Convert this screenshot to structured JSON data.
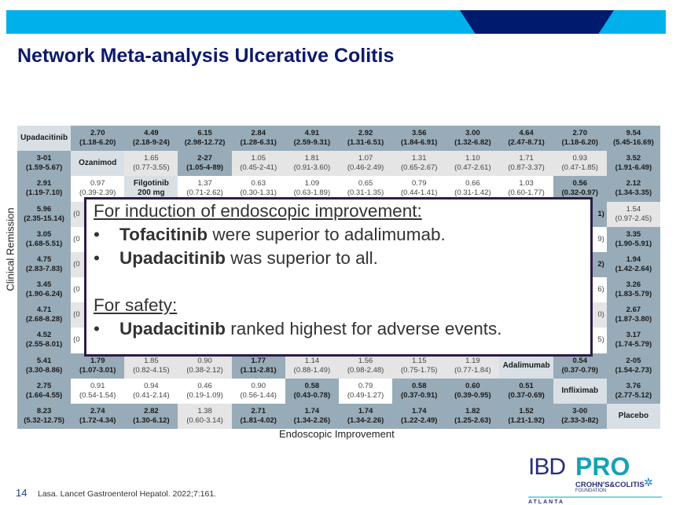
{
  "slide": {
    "title": "Network Meta-analysis Ulcerative Colitis",
    "y_axis_label": "Clinical Remission",
    "x_axis_label": "Endoscopic Improvement",
    "page_number": "14",
    "citation": "Lasa. Lancet Gastroenterol Hepatol. 2022;7:161.",
    "colors": {
      "banner": "#00b0ea",
      "banner_notch": "#001b6e",
      "title": "#0d1a6b",
      "significant": "#97abb8",
      "label": "#d8e0e6",
      "callout_border": "#2e1a47"
    }
  },
  "logo": {
    "ibd": "IBD",
    "pro": "PRO",
    "org": "CROHN'S&COLITIS",
    "foundation": "FOUNDATION",
    "city": "ATLANTA"
  },
  "callout": {
    "heading1": "For induction of endoscopic improvement",
    "bullet1_bold": "Tofacitinib",
    "bullet1_text": " were superior to adalimumab.",
    "bullet2_bold": "Upadacitinib",
    "bullet2_text": " was superior to all.",
    "heading2": "For safety",
    "bullet3_bold": "Upadacitinib",
    "bullet3_text": " ranked highest for adverse events.",
    "colon": ":",
    "bullet": "•"
  },
  "table": {
    "rows": [
      [
        [
          "Upadacitinib",
          "",
          "l"
        ],
        [
          "2.70",
          "(1.18-6.20)",
          "b"
        ],
        [
          "4.49",
          "(2.18-9-24)",
          "b"
        ],
        [
          "6.15",
          "(2.98-12.72)",
          "b"
        ],
        [
          "2.84",
          "(1.28-6.31)",
          "b"
        ],
        [
          "4.91",
          "(2.59-9.31)",
          "b"
        ],
        [
          "2.92",
          "(1.31-6.51)",
          "b"
        ],
        [
          "3.56",
          "(1.84-6.91)",
          "b"
        ],
        [
          "3.00",
          "(1.32-6.82)",
          "b"
        ],
        [
          "4.64",
          "(2.47-8.71)",
          "b"
        ],
        [
          "2.70",
          "(1.18-6.20)",
          "b"
        ],
        [
          "9.54",
          "(5.45-16.69)",
          "b"
        ]
      ],
      [
        [
          "3-01",
          "(1.59-5.67)",
          "b"
        ],
        [
          "Ozanimod",
          "",
          "l"
        ],
        [
          "1.65",
          "(0.77-3.55)",
          "g"
        ],
        [
          "2-27",
          "(1.05-4-89)",
          "b"
        ],
        [
          "1.05",
          "(0.45-2-41)",
          "g"
        ],
        [
          "1.81",
          "(0.91-3.60)",
          "g"
        ],
        [
          "1.07",
          "(0.46-2.49)",
          "g"
        ],
        [
          "1.31",
          "(0.65-2.67)",
          "g"
        ],
        [
          "1.10",
          "(0.47-2.61)",
          "g"
        ],
        [
          "1.71",
          "(0.87-3.37)",
          "g"
        ],
        [
          "0.93",
          "(0.47-1.85)",
          "g"
        ],
        [
          "3.52",
          "(1.91-6.49)",
          "b"
        ]
      ],
      [
        [
          "2.91",
          "(1.19-7.10)",
          "b"
        ],
        [
          "0.97",
          "(0.39-2.39)",
          "w"
        ],
        [
          "Filgotinib",
          "200 mg",
          "l"
        ],
        [
          "1.37",
          "(0.71-2.62)",
          "w"
        ],
        [
          "0.63",
          "(0.30-1.31)",
          "w"
        ],
        [
          "1.09",
          "(0.63-1.89)",
          "w"
        ],
        [
          "0.65",
          "(0.31-1.35)",
          "w"
        ],
        [
          "0.79",
          "(0.44-1.41)",
          "w"
        ],
        [
          "0.66",
          "(0.31-1.42)",
          "w"
        ],
        [
          "1.03",
          "(0.60-1.77)",
          "w"
        ],
        [
          "0.56",
          "(0.32-0.97)",
          "b"
        ],
        [
          "2.12",
          "(1.34-3.35)",
          "b"
        ]
      ],
      [
        [
          "5.96",
          "(2.35-15.14)",
          "b"
        ],
        [
          "",
          "(0",
          "g fl"
        ],
        [
          "",
          "",
          "g"
        ],
        [
          "",
          "",
          "g"
        ],
        [
          "",
          "",
          "g"
        ],
        [
          "",
          "",
          "g"
        ],
        [
          "",
          "",
          "g"
        ],
        [
          "",
          "",
          "g"
        ],
        [
          "",
          "",
          "g"
        ],
        [
          "",
          "",
          "g"
        ],
        [
          "",
          "1)",
          "b fr"
        ],
        [
          "1.54",
          "(0.97-2.45)",
          "g"
        ]
      ],
      [
        [
          "3.05",
          "(1.68-5.51)",
          "b"
        ],
        [
          "",
          "(0",
          "w fl"
        ],
        [
          "",
          "",
          "w"
        ],
        [
          "",
          "",
          "w"
        ],
        [
          "",
          "",
          "w"
        ],
        [
          "",
          "",
          "w"
        ],
        [
          "",
          "",
          "w"
        ],
        [
          "",
          "",
          "w"
        ],
        [
          "",
          "",
          "w"
        ],
        [
          "",
          "",
          "w"
        ],
        [
          "",
          "9)",
          "w fr"
        ],
        [
          "3.35",
          "(1.90-5.91)",
          "b"
        ]
      ],
      [
        [
          "4.75",
          "(2.83-7.83)",
          "b"
        ],
        [
          "",
          "(0",
          "g fl"
        ],
        [
          "",
          "",
          "g"
        ],
        [
          "",
          "",
          "g"
        ],
        [
          "",
          "",
          "g"
        ],
        [
          "",
          "",
          "g"
        ],
        [
          "",
          "",
          "g"
        ],
        [
          "",
          "",
          "g"
        ],
        [
          "",
          "",
          "g"
        ],
        [
          "",
          "",
          "g"
        ],
        [
          "",
          "2)",
          "b fr"
        ],
        [
          "1.94",
          "(1.42-2.64)",
          "b"
        ]
      ],
      [
        [
          "3.45",
          "(1.90-6.24)",
          "b"
        ],
        [
          "",
          "(0",
          "w fl"
        ],
        [
          "",
          "",
          "w"
        ],
        [
          "",
          "",
          "w"
        ],
        [
          "",
          "",
          "w"
        ],
        [
          "",
          "",
          "w"
        ],
        [
          "",
          "",
          "w"
        ],
        [
          "",
          "",
          "w"
        ],
        [
          "",
          "",
          "w"
        ],
        [
          "",
          "",
          "w"
        ],
        [
          "",
          "6)",
          "w fr"
        ],
        [
          "3.26",
          "(1.83-5.79)",
          "b"
        ]
      ],
      [
        [
          "4.71",
          "(2.68-8.28)",
          "b"
        ],
        [
          "",
          "(0",
          "g fl"
        ],
        [
          "",
          "",
          "g"
        ],
        [
          "",
          "",
          "g"
        ],
        [
          "",
          "",
          "g"
        ],
        [
          "",
          "",
          "g"
        ],
        [
          "",
          "",
          "g"
        ],
        [
          "",
          "",
          "g"
        ],
        [
          "",
          "",
          "g"
        ],
        [
          "",
          "",
          "g"
        ],
        [
          "",
          "0)",
          "g fr"
        ],
        [
          "2.67",
          "(1.87-3.80)",
          "b"
        ]
      ],
      [
        [
          "4.52",
          "(2.55-8.01)",
          "b"
        ],
        [
          "",
          "(0",
          "w fl"
        ],
        [
          "",
          "",
          "w"
        ],
        [
          "",
          "",
          "w"
        ],
        [
          "",
          "",
          "w"
        ],
        [
          "",
          "",
          "w"
        ],
        [
          "",
          "",
          "w"
        ],
        [
          "",
          "",
          "w"
        ],
        [
          "",
          "",
          "w"
        ],
        [
          "",
          "",
          "w"
        ],
        [
          "",
          "5)",
          "w fr"
        ],
        [
          "3.17",
          "(1.74-5.79)",
          "b"
        ]
      ],
      [
        [
          "5.41",
          "(3.30-8.86)",
          "b"
        ],
        [
          "1.79",
          "(1.07-3.01)",
          "b"
        ],
        [
          "1.85",
          "(0.82-4.15)",
          "g"
        ],
        [
          "0.90",
          "(0.38-2.12)",
          "g"
        ],
        [
          "1.77",
          "(1.11-2.81)",
          "b"
        ],
        [
          "1.14",
          "(0.88-1.49)",
          "g"
        ],
        [
          "1.56",
          "(0.98-2.48)",
          "g"
        ],
        [
          "1.15",
          "(0.75-1.75)",
          "g"
        ],
        [
          "1.19",
          "(0.77-1.84)",
          "g"
        ],
        [
          "Adalimumab",
          "",
          "l"
        ],
        [
          "0.54",
          "(0.37-0.79)",
          "b"
        ],
        [
          "2-05",
          "(1.54-2.73)",
          "b"
        ]
      ],
      [
        [
          "2.75",
          "(1.66-4.55)",
          "b"
        ],
        [
          "0.91",
          "(0.54-1.54)",
          "w"
        ],
        [
          "0.94",
          "(0.41-2.14)",
          "w"
        ],
        [
          "0.46",
          "(0.19-1.09)",
          "w"
        ],
        [
          "0.90",
          "(0.56-1.44)",
          "w"
        ],
        [
          "0.58",
          "(0.43-0.78)",
          "b"
        ],
        [
          "0.79",
          "(0.49-1.27)",
          "w"
        ],
        [
          "0.58",
          "(0.37-0.91)",
          "b"
        ],
        [
          "0.60",
          "(0.39-0.95)",
          "b"
        ],
        [
          "0.51",
          "(0.37-0.69)",
          "b"
        ],
        [
          "Infliximab",
          "",
          "l"
        ],
        [
          "3.76",
          "(2.77-5.12)",
          "b"
        ]
      ],
      [
        [
          "8.23",
          "(5.32-12.75)",
          "b"
        ],
        [
          "2.74",
          "(1.72-4.34)",
          "b"
        ],
        [
          "2.82",
          "(1.30-6.12)",
          "b"
        ],
        [
          "1.38",
          "(0.60-3.14)",
          "g"
        ],
        [
          "2.71",
          "(1.81-4.02)",
          "b"
        ],
        [
          "1.74",
          "(1.34-2.26)",
          "b"
        ],
        [
          "1.74",
          "(1.34-2.26)",
          "b"
        ],
        [
          "1.74",
          "(1.22-2.49)",
          "b"
        ],
        [
          "1.82",
          "(1.25-2.63)",
          "b"
        ],
        [
          "1.52",
          "(1.21-1.92)",
          "b"
        ],
        [
          "3-00",
          "(2.33-3-82)",
          "b"
        ],
        [
          "Placebo",
          "",
          "l"
        ]
      ]
    ]
  }
}
